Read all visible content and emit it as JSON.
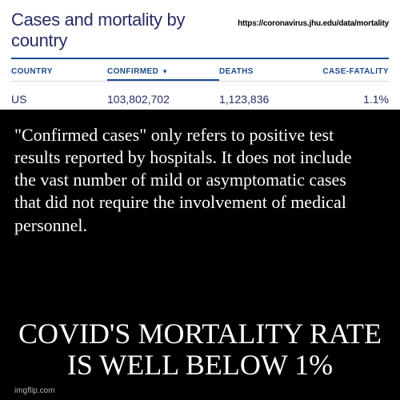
{
  "top": {
    "title": "Cases and mortality by country",
    "url": "https://coronavirus.jhu.edu/data/mortality",
    "divider_color": "#1a4b8c",
    "title_color": "#282c64",
    "columns": {
      "country": "COUNTRY",
      "confirmed": "CONFIRMED",
      "deaths": "DEATHS",
      "fatality": "CASE-FATALITY"
    },
    "sort_glyph": "▼",
    "row": {
      "country": "US",
      "confirmed": "103,802,702",
      "deaths": "1,123,836",
      "fatality": "1.1%"
    }
  },
  "body_text": "\"Confirmed cases\" only refers to positive test results reported by hospitals. It does not include the vast number of mild or asymptomatic cases that did not require the involvement of medical personnel.",
  "big_text": "COVID'S MORTALITY RATE IS WELL BELOW 1%",
  "watermark": "imgflip.com",
  "colors": {
    "background": "#000000",
    "panel": "#ffffff",
    "text_light": "#ffffff",
    "accent": "#1a4b8c"
  }
}
